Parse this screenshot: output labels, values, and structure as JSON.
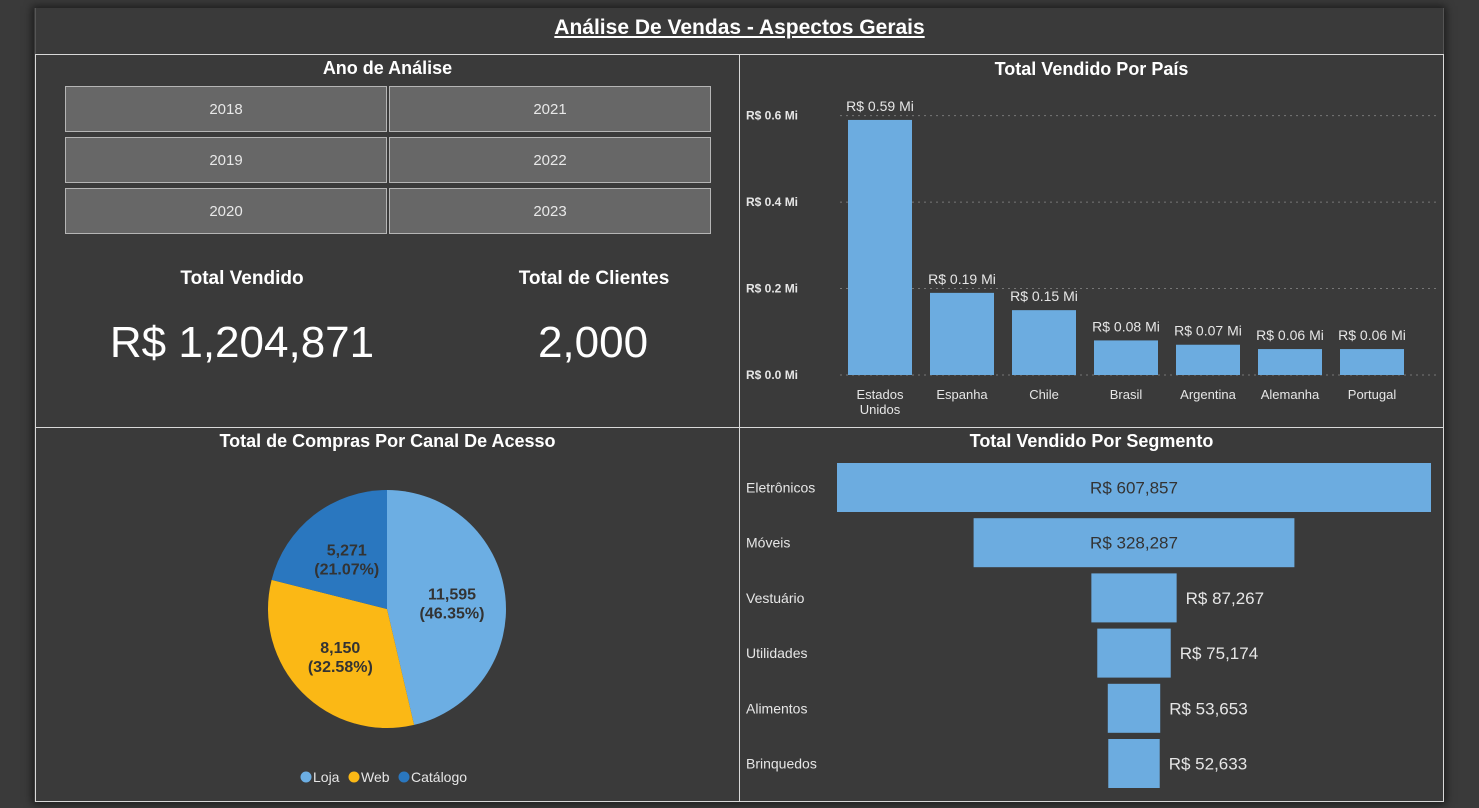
{
  "header": {
    "title": "Análise De Vendas - Aspectos Gerais"
  },
  "year_filter": {
    "title": "Ano de Análise",
    "years": [
      "2018",
      "2021",
      "2019",
      "2022",
      "2020",
      "2023"
    ]
  },
  "kpis": {
    "total_vendido_label": "Total Vendido",
    "total_vendido_value": "R$ 1,204,871",
    "total_clientes_label": "Total de Clientes",
    "total_clientes_value": "2,000"
  },
  "colors": {
    "bar": "#6cace0",
    "loja": "#6caee3",
    "web": "#fbb815",
    "catalogo": "#2a77bf"
  },
  "chart_data": [
    {
      "type": "bar",
      "title": "Total Vendido Por País",
      "categories": [
        "Estados Unidos",
        "Espanha",
        "Chile",
        "Brasil",
        "Argentina",
        "Alemanha",
        "Portugal"
      ],
      "category_lines": [
        [
          "Estados",
          "Unidos"
        ],
        [
          "Espanha"
        ],
        [
          "Chile"
        ],
        [
          "Brasil"
        ],
        [
          "Argentina"
        ],
        [
          "Alemanha"
        ],
        [
          "Portugal"
        ]
      ],
      "values": [
        0.59,
        0.19,
        0.15,
        0.08,
        0.07,
        0.06,
        0.06
      ],
      "data_labels": [
        "R$ 0.59 Mi",
        "R$ 0.19 Mi",
        "R$ 0.15 Mi",
        "R$ 0.08 Mi",
        "R$ 0.07 Mi",
        "R$ 0.06 Mi",
        "R$ 0.06 Mi"
      ],
      "yticks": [
        0.0,
        0.2,
        0.4,
        0.6
      ],
      "ytick_labels": [
        "R$ 0.0 Mi",
        "R$ 0.2 Mi",
        "R$ 0.4 Mi",
        "R$ 0.6 Mi"
      ],
      "ylim": [
        0,
        0.65
      ],
      "grid": true
    },
    {
      "type": "pie",
      "title": "Total de Compras Por Canal De Acesso",
      "labels": [
        "Loja",
        "Web",
        "Catálogo"
      ],
      "values": [
        11595,
        8150,
        5271
      ],
      "value_labels": [
        "11,595",
        "8,150",
        "5,271"
      ],
      "percent_labels": [
        "(46.35%)",
        "(32.58%)",
        "(21.07%)"
      ],
      "legend": "bottom"
    },
    {
      "type": "bar",
      "orientation": "funnel",
      "title": "Total Vendido Por Segmento",
      "categories": [
        "Eletrônicos",
        "Móveis",
        "Vestuário",
        "Utilidades",
        "Alimentos",
        "Brinquedos"
      ],
      "values": [
        607857,
        328287,
        87267,
        75174,
        53653,
        52633
      ],
      "data_labels": [
        "R$ 607,857",
        "R$ 328,287",
        "R$ 87,267",
        "R$ 75,174",
        "R$ 53,653",
        "R$ 52,633"
      ]
    }
  ]
}
